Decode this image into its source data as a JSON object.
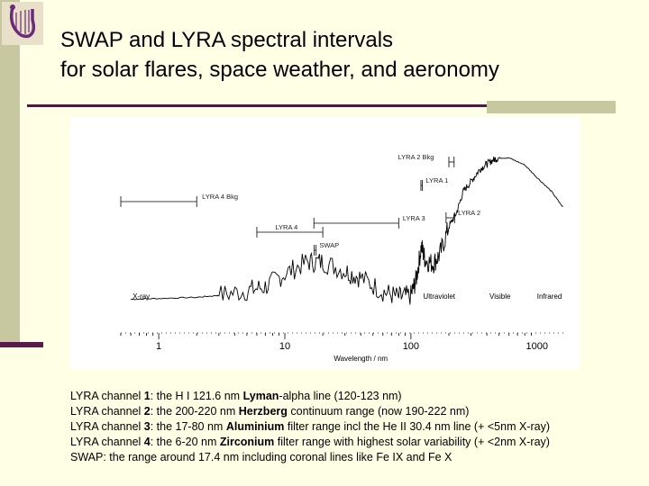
{
  "header": {
    "title_line1": "SWAP and LYRA spectral intervals",
    "title_line2": "for solar flares, space weather, and aeronomy"
  },
  "colors": {
    "background": "#ffffe6",
    "accent_bar": "#c8c8a0",
    "rule": "#4a1a3a",
    "logo": "#6b2a7a"
  },
  "logo_icon": "harp-logo-icon",
  "chart_data": {
    "type": "line",
    "xscale": "log",
    "xlim": [
      0.5,
      1700
    ],
    "xticks": [
      1,
      10,
      100,
      1000
    ],
    "xtick_labels": [
      "1",
      "10",
      "100",
      "1000"
    ],
    "xlabel": "Wavelength / nm",
    "grid": false,
    "bands": [
      {
        "name": "LYRA 2 Bkg",
        "range": [
          200,
          220
        ]
      },
      {
        "name": "LYRA 1",
        "range": [
          120,
          123
        ]
      },
      {
        "name": "LYRA 4 Bkg",
        "range": [
          0.5,
          2
        ]
      },
      {
        "name": "LYRA 2",
        "range": [
          190,
          222
        ]
      },
      {
        "name": "LYRA 3",
        "range": [
          17,
          80
        ]
      },
      {
        "name": "LYRA 4",
        "range": [
          6,
          20
        ]
      },
      {
        "name": "SWAP",
        "range": [
          17.1,
          17.7
        ]
      }
    ],
    "region_labels": [
      "X-ray",
      "Ultraviolet",
      "Visible",
      "Infrared"
    ],
    "series": [
      {
        "x": [
          0.6,
          1,
          2,
          3,
          5,
          7,
          10,
          15,
          20,
          30,
          40,
          60,
          80,
          100,
          110,
          121,
          130,
          150,
          170,
          200,
          230,
          260,
          300,
          350,
          400,
          450,
          500,
          600,
          800,
          1000,
          1300,
          1600
        ],
        "y": [
          0.4,
          0.42,
          0.45,
          0.5,
          0.62,
          0.72,
          1.05,
          1.35,
          1.35,
          1.12,
          0.95,
          0.6,
          0.45,
          0.5,
          0.9,
          1.75,
          1.4,
          1.3,
          1.55,
          2.25,
          2.6,
          3.15,
          3.4,
          3.7,
          3.85,
          3.95,
          4.0,
          4.0,
          3.82,
          3.5,
          3.15,
          2.75
        ]
      }
    ]
  },
  "notes": [
    {
      "pre": "LYRA channel ",
      "num": "1",
      "mid": ": the H I 121.6 nm ",
      "bold": "Lyman",
      "post": "-alpha line (120-123 nm)"
    },
    {
      "pre": "LYRA channel ",
      "num": "2",
      "mid": ": the 200-220 nm ",
      "bold": "Herzberg",
      "post": " continuum range (now 190-222 nm)"
    },
    {
      "pre": "LYRA channel ",
      "num": "3",
      "mid": ": the 17-80 nm ",
      "bold": "Aluminium",
      "post": " filter range incl the He II 30.4 nm line (+ <5nm X-ray)"
    },
    {
      "pre": "LYRA channel ",
      "num": "4",
      "mid": ": the 6-20 nm ",
      "bold": "Zirconium",
      "post": " filter range with highest solar variability (+ <2nm X-ray)"
    },
    {
      "pre": "SWAP: the range around 17.4 nm including coronal lines like Fe IX and Fe X",
      "num": "",
      "mid": "",
      "bold": "",
      "post": ""
    }
  ]
}
